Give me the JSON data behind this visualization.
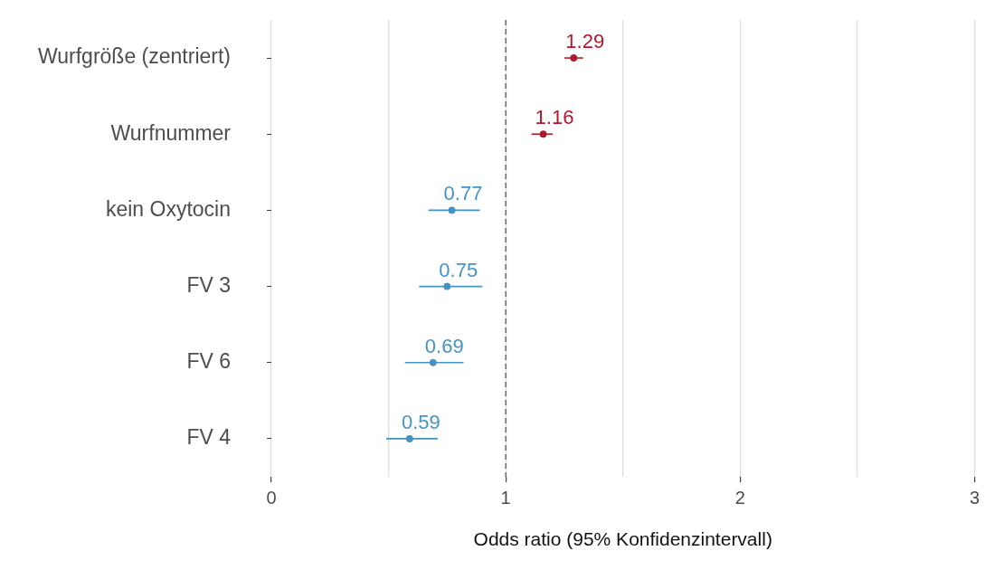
{
  "chart_data": {
    "type": "scatter",
    "orientation": "horizontal",
    "categories": [
      "Wurfgröße (zentriert)",
      "Wurfnummer",
      "kein Oxytocin",
      "FV 3",
      "FV 6",
      "FV 4"
    ],
    "values": [
      1.29,
      1.16,
      0.77,
      0.75,
      0.69,
      0.59
    ],
    "errors": [
      [
        1.25,
        1.33
      ],
      [
        1.11,
        1.2
      ],
      [
        0.67,
        0.89
      ],
      [
        0.63,
        0.9
      ],
      [
        0.57,
        0.82
      ],
      [
        0.49,
        0.71
      ]
    ],
    "colors": [
      "#b2182b",
      "#b2182b",
      "#4393c3",
      "#4393c3",
      "#4393c3",
      "#4393c3"
    ],
    "data_labels": true,
    "marker": "circle",
    "xlabel": "Odds ratio (95% Konfidenzintervall)",
    "xlim": [
      0,
      3
    ],
    "xticks": [
      0,
      {
        "value": 0.5,
        "label": null
      },
      1,
      {
        "value": 1.5,
        "label": null
      },
      2,
      {
        "value": 2.5,
        "label": null
      },
      3
    ],
    "grid": "x",
    "ref_lines": [
      {
        "axis": "x",
        "value": 1,
        "color": "#555555",
        "line_style": "dashed"
      }
    ]
  }
}
